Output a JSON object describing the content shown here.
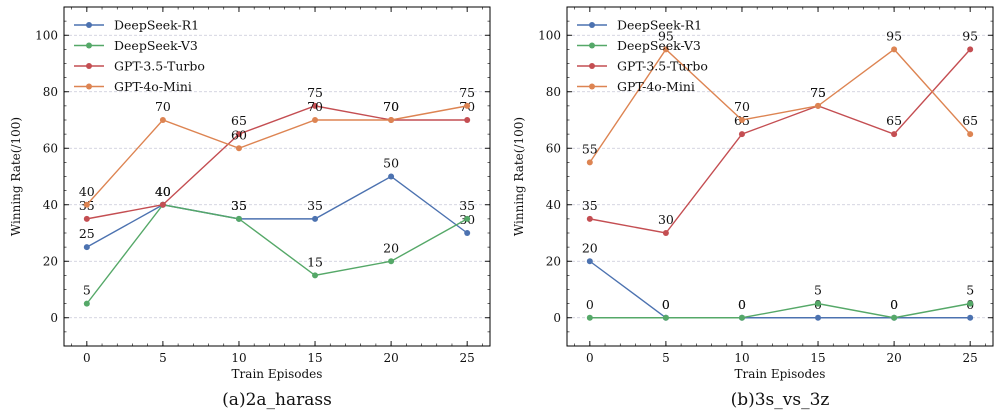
{
  "chart_data": [
    {
      "type": "line",
      "caption": "(a)2a_harass",
      "xlabel": "Train Episodes",
      "ylabel": "Winning Rate(/100)",
      "x": [
        0,
        5,
        10,
        15,
        20,
        25
      ],
      "xlim": [
        -1.5,
        26.5
      ],
      "ylim": [
        -10,
        110
      ],
      "yticks": [
        0,
        20,
        40,
        60,
        80,
        100
      ],
      "grid": "horizontal-dashed",
      "legend_position": "top-left",
      "series": [
        {
          "name": "DeepSeek-R1",
          "color": "#4c72b0",
          "values": [
            25,
            40,
            35,
            35,
            50,
            30
          ]
        },
        {
          "name": "DeepSeek-V3",
          "color": "#55a868",
          "values": [
            5,
            40,
            35,
            15,
            20,
            35
          ]
        },
        {
          "name": "GPT-3.5-Turbo",
          "color": "#c44e52",
          "values": [
            35,
            40,
            65,
            75,
            70,
            70
          ]
        },
        {
          "name": "GPT-4o-Mini",
          "color": "#dd8452",
          "values": [
            40,
            70,
            60,
            70,
            70,
            75
          ]
        }
      ]
    },
    {
      "type": "line",
      "caption": "(b)3s_vs_3z",
      "xlabel": "Train Episodes",
      "ylabel": "Winning Rate(/100)",
      "x": [
        0,
        5,
        10,
        15,
        20,
        25
      ],
      "xlim": [
        -1.5,
        26.5
      ],
      "ylim": [
        -10,
        110
      ],
      "yticks": [
        0,
        20,
        40,
        60,
        80,
        100
      ],
      "grid": "horizontal-dashed",
      "legend_position": "top-left",
      "series": [
        {
          "name": "DeepSeek-R1",
          "color": "#4c72b0",
          "values": [
            20,
            0,
            0,
            0,
            0,
            0
          ]
        },
        {
          "name": "DeepSeek-V3",
          "color": "#55a868",
          "values": [
            0,
            0,
            0,
            5,
            0,
            5
          ]
        },
        {
          "name": "GPT-3.5-Turbo",
          "color": "#c44e52",
          "values": [
            35,
            30,
            65,
            75,
            65,
            95
          ]
        },
        {
          "name": "GPT-4o-Mini",
          "color": "#dd8452",
          "values": [
            55,
            95,
            70,
            75,
            95,
            65
          ]
        }
      ]
    }
  ]
}
